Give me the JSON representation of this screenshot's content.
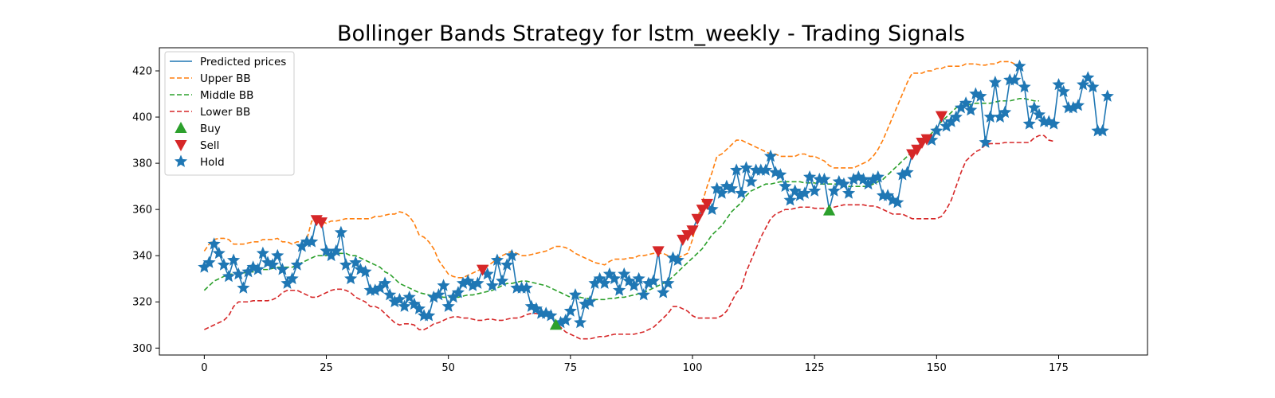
{
  "chart_data": {
    "type": "line",
    "title": "Bollinger Bands Strategy for lstm_weekly - Trading Signals",
    "xlabel": "",
    "ylabel": "",
    "xlim": [
      -9.2,
      193.2
    ],
    "ylim": [
      297,
      430
    ],
    "xticks": [
      0,
      25,
      50,
      75,
      100,
      125,
      150,
      175
    ],
    "yticks": [
      300,
      320,
      340,
      360,
      380,
      400,
      420
    ],
    "grid": false,
    "legend_position": "top-left",
    "legend": [
      "Predicted prices",
      "Upper BB",
      "Middle BB",
      "Lower BB",
      "Buy",
      "Sell",
      "Hold"
    ],
    "colors": {
      "predicted": "#1f77b4",
      "upper": "#ff7f0e",
      "middle": "#2ca02c",
      "lower": "#d62728",
      "buy": "#2ca02c",
      "sell": "#d62728",
      "hold": "#1f77b4"
    },
    "predicted_prices": [
      335,
      337,
      345,
      341,
      336,
      331,
      338,
      332,
      326,
      333,
      335,
      334,
      341,
      337,
      336,
      340,
      334,
      328,
      330,
      336,
      344,
      346,
      346,
      356,
      355,
      342,
      340,
      342,
      350,
      336,
      330,
      337,
      334,
      333,
      325,
      325,
      326,
      328,
      323,
      320,
      321,
      318,
      322,
      319,
      317,
      314,
      314,
      322,
      323,
      327,
      318,
      322,
      324,
      328,
      329,
      327,
      328,
      334,
      332,
      327,
      338,
      329,
      336,
      340,
      326,
      326,
      326,
      318,
      317,
      315,
      315,
      314,
      310,
      311,
      312,
      316,
      323,
      311,
      319,
      320,
      328,
      330,
      328,
      332,
      330,
      325,
      332,
      329,
      327,
      330,
      323,
      328,
      329,
      342,
      324,
      328,
      339,
      338,
      347,
      349,
      351,
      356,
      360,
      363,
      360,
      369,
      367,
      370,
      369,
      377,
      367,
      378,
      372,
      377,
      377,
      377,
      383,
      376,
      375,
      370,
      364,
      368,
      366,
      367,
      374,
      368,
      373,
      373,
      360,
      368,
      372,
      371,
      367,
      373,
      374,
      373,
      371,
      373,
      374,
      366,
      366,
      364,
      363,
      375,
      376,
      384,
      387,
      389,
      391,
      390,
      394,
      400,
      396,
      398,
      400,
      404,
      406,
      403,
      410,
      409,
      389,
      400,
      415,
      400,
      402,
      416,
      416,
      422,
      413,
      397,
      404,
      401,
      398,
      398,
      397,
      414,
      411,
      404,
      404,
      405,
      414,
      417,
      413,
      394,
      394,
      409
    ],
    "upper_bb": [
      342,
      345,
      347,
      347.5,
      347.5,
      347,
      345,
      345,
      345,
      345.5,
      346,
      346,
      347,
      347,
      347,
      347.5,
      346,
      346,
      345,
      346,
      346,
      347,
      355,
      355,
      355,
      354,
      355,
      355,
      355.5,
      356,
      356,
      356,
      356,
      356,
      356,
      357,
      357,
      357.5,
      358,
      358,
      359,
      358.5,
      357,
      354,
      349,
      348,
      346,
      343,
      338,
      335,
      332,
      331,
      330.5,
      330.5,
      331.5,
      332.5,
      333.5,
      334.5,
      335.5,
      337,
      338.5,
      340,
      341,
      342,
      341,
      340,
      340,
      340.5,
      341,
      341.5,
      342,
      343,
      344,
      344,
      343.5,
      342.5,
      341,
      340,
      339,
      338,
      337,
      336.5,
      336,
      337.5,
      338.5,
      338.5,
      338.5,
      339,
      339,
      340,
      340,
      340.5,
      341,
      341,
      341,
      340,
      339,
      339,
      340,
      341,
      347,
      356,
      363,
      370,
      376,
      383,
      384,
      386,
      388,
      390,
      390,
      389,
      388,
      387,
      386,
      385,
      384,
      384,
      383,
      383,
      383,
      383,
      384,
      384,
      383,
      383,
      382,
      381,
      379,
      378,
      378,
      378,
      378,
      378,
      379,
      380,
      381,
      383,
      386,
      390,
      395,
      400,
      405,
      410,
      415,
      419,
      419,
      419,
      420,
      420,
      421,
      421,
      422,
      422,
      422,
      422,
      423,
      423,
      423,
      422.5,
      422.5,
      423,
      423,
      424,
      424,
      424,
      423
    ],
    "middle_bb": [
      325,
      327,
      329,
      330,
      331,
      332,
      332,
      332.5,
      332.5,
      333,
      333,
      333.5,
      334,
      334,
      334.5,
      335,
      335,
      335,
      335,
      336,
      337,
      338,
      339,
      340,
      340,
      340,
      341,
      341,
      341,
      341,
      340,
      340,
      339,
      338,
      337,
      336,
      335,
      333,
      332,
      330,
      328,
      327,
      326,
      325,
      324,
      323.5,
      323,
      322.5,
      322.5,
      322,
      322,
      322,
      322,
      322.5,
      323,
      323,
      323.5,
      324,
      324.5,
      325,
      326,
      327,
      328,
      328,
      328.5,
      329,
      329,
      328.5,
      328,
      327.5,
      327,
      326,
      325,
      324,
      323,
      322,
      322,
      322,
      321.5,
      321.5,
      321,
      321,
      321,
      321.5,
      321.5,
      322,
      322,
      322.5,
      323,
      323.5,
      324,
      325,
      326,
      327,
      328,
      329,
      331,
      333,
      335,
      337,
      339,
      341,
      343,
      346,
      349,
      351,
      353,
      356,
      359,
      361,
      363,
      366,
      368,
      369,
      370,
      371,
      371,
      371.5,
      372,
      372,
      372,
      372,
      372,
      371.5,
      371.5,
      371.5,
      371,
      371,
      371,
      371,
      371,
      371,
      370,
      370,
      370,
      370,
      370,
      371,
      372,
      373,
      375,
      377,
      379,
      381,
      383,
      385,
      387,
      389,
      391,
      393,
      396,
      398,
      400,
      402,
      404,
      405,
      405,
      405.5,
      406,
      406,
      406,
      406,
      406.5,
      407,
      407,
      407,
      407.5,
      408,
      408,
      407.5,
      407,
      407
    ],
    "lower_bb": [
      308,
      309,
      310,
      311,
      312,
      314,
      318,
      320,
      320,
      320,
      320.5,
      320.5,
      320.5,
      320.5,
      321,
      322,
      324,
      325,
      325,
      325,
      324,
      323,
      322,
      322,
      323,
      324,
      325,
      325.5,
      325.5,
      325,
      324,
      322,
      321,
      320,
      318,
      318,
      317,
      315,
      313,
      311,
      310,
      310.5,
      310.5,
      310,
      308,
      308,
      309,
      310.5,
      311,
      312,
      313,
      313.5,
      313.5,
      313,
      313,
      312.5,
      312,
      312,
      312.5,
      312.5,
      312,
      312,
      312.5,
      313,
      313,
      313.5,
      314.5,
      315,
      315,
      314.5,
      314,
      313,
      311,
      309,
      307,
      306,
      305,
      304,
      304,
      304,
      304.5,
      305,
      305,
      305.5,
      306,
      306,
      306,
      306,
      306,
      306.5,
      307,
      308,
      309,
      311,
      313,
      315,
      318,
      318,
      317,
      316,
      314,
      313,
      313,
      313,
      313,
      313,
      314,
      316,
      320,
      324,
      326,
      333,
      338,
      343,
      348,
      352,
      356,
      358,
      359,
      360,
      360,
      360.5,
      361,
      361,
      361,
      360.5,
      360.5,
      360.5,
      360.5,
      361,
      361.5,
      362,
      362,
      362,
      362,
      362,
      361.5,
      361.5,
      361,
      360,
      359,
      358,
      358,
      358,
      357,
      356,
      356,
      356,
      356,
      356,
      356,
      357,
      360,
      364,
      370,
      376,
      381,
      383,
      385,
      386,
      388,
      388.5,
      388.5,
      388.5,
      389,
      389,
      389,
      389,
      389,
      389,
      391,
      392,
      392,
      390,
      389.5
    ],
    "buy_signals": [
      [
        72,
        310
      ],
      [
        128,
        359.5
      ]
    ],
    "sell_signals": [
      [
        23,
        355.5
      ],
      [
        24,
        354.5
      ],
      [
        57,
        334
      ],
      [
        93,
        342
      ],
      [
        98,
        347
      ],
      [
        99,
        349
      ],
      [
        100,
        351
      ],
      [
        101,
        356
      ],
      [
        102,
        360
      ],
      [
        103,
        362.5
      ],
      [
        145,
        384
      ],
      [
        146,
        386
      ],
      [
        147,
        389
      ],
      [
        148,
        390.5
      ],
      [
        151,
        400.5
      ]
    ]
  }
}
